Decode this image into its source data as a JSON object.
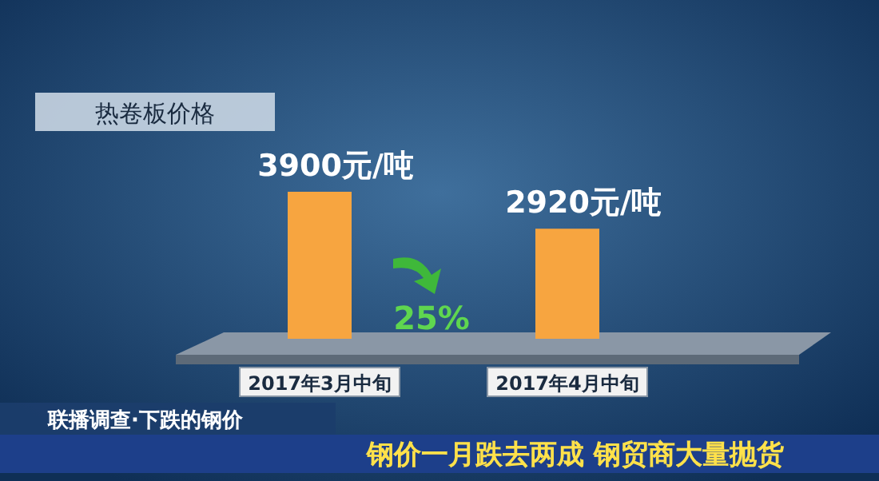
{
  "chart_data": {
    "type": "bar",
    "title": "热卷板价格",
    "categories": [
      "2017年3月中旬",
      "2017年4月中旬"
    ],
    "values": [
      3900,
      2920
    ],
    "value_labels": [
      "3900元/吨",
      "2920元/吨"
    ],
    "color": "#f7a540",
    "relative": false,
    "annotations": [
      "25%",
      "联播调查·下跌的钢价",
      "钢价一月跌去两成 钢贸商大量抛货"
    ]
  }
}
